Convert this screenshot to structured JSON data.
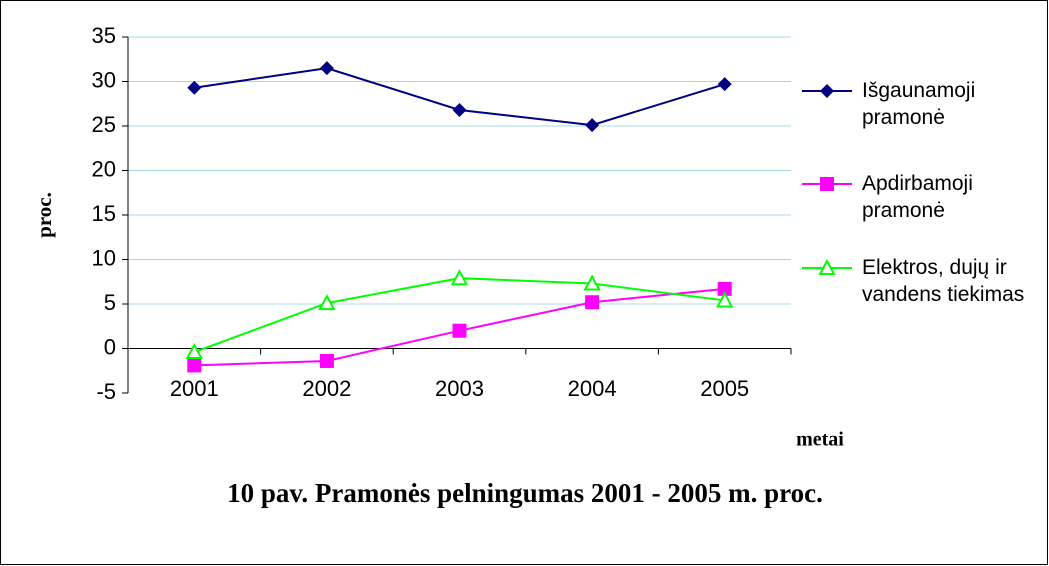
{
  "chart_data": {
    "type": "line",
    "title": "10 pav. Pramonės pelningumas 2001 - 2005 m. proc.",
    "x_label": "metai",
    "y_label": "proc.",
    "categories": [
      "2001",
      "2002",
      "2003",
      "2004",
      "2005"
    ],
    "series": [
      {
        "name": "Išgaunamoji pramonė",
        "color": "#000080",
        "marker": "diamond",
        "values": [
          29.3,
          31.5,
          26.8,
          25.1,
          29.7
        ]
      },
      {
        "name": "Apdirbamoji pramonė",
        "color": "#ff00ff",
        "marker": "square",
        "values": [
          -1.9,
          -1.4,
          2.0,
          5.2,
          6.7
        ]
      },
      {
        "name": "Elektros, dujų ir vandens tiekimas",
        "color": "#00ff00",
        "marker": "triangle",
        "values": [
          -0.4,
          5.1,
          7.9,
          7.3,
          5.4
        ]
      }
    ],
    "ylim": [
      -5,
      35
    ],
    "yticks": [
      -5,
      0,
      5,
      10,
      15,
      20,
      25,
      30,
      35
    ],
    "grid": true,
    "legend": "right"
  }
}
